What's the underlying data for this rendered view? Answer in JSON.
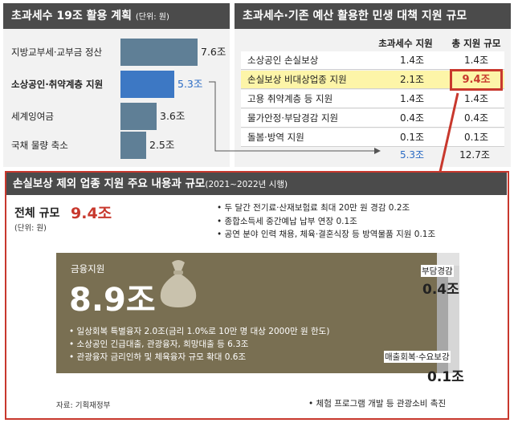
{
  "left": {
    "title": "초과세수 19조 활용 계획",
    "unit": "(단위: 원)",
    "items": [
      {
        "label": "지방교부세·교부금 정산",
        "value": "7.6조",
        "num": 7.6
      },
      {
        "label": "소상공인·취약계층 지원",
        "value": "5.3조",
        "num": 5.3
      },
      {
        "label": "세계잉여금",
        "value": "3.6조",
        "num": 3.6
      },
      {
        "label": "국채 물량 축소",
        "value": "2.5조",
        "num": 2.5
      }
    ]
  },
  "right": {
    "title": "초과세수·기존 예산 활용한 민생 대책 지원 규모",
    "headers": [
      "초과세수 지원",
      "총 지원 규모"
    ],
    "rows": [
      {
        "name": "소상공인 손실보상",
        "excess": "1.4조",
        "total": "1.4조"
      },
      {
        "name": "손실보상 비대상업종 지원",
        "excess": "2.1조",
        "total": "9.4조"
      },
      {
        "name": "고용 취약계층 등 지원",
        "excess": "1.4조",
        "total": "1.4조"
      },
      {
        "name": "물가안정·부담경감 지원",
        "excess": "0.4조",
        "total": "0.4조"
      },
      {
        "name": "돌봄·방역 지원",
        "excess": "0.1조",
        "total": "0.1조"
      }
    ],
    "sum_excess": "5.3조",
    "sum_total": "12.7조"
  },
  "bottom": {
    "title": "손실보상 제외 업종 지원 주요 내용과 규모",
    "period": "(2021~2022년 시행)",
    "total_label": "전체 규모",
    "total_value": "9.4조",
    "unit": "(단위: 원)",
    "notes": [
      "• 두 달간 전기료·산재보험료 최대 20만 원 경감 0.2조",
      "• 종합소득세 중간예납 납부 연장 0.1조",
      "• 공연 분야 인력 채용, 체육·결혼식장 등 방역물품 지원 0.1조"
    ],
    "finance": {
      "label": "금융지원",
      "value": "8.9조",
      "bullets": [
        "• 일상회복 특별융자 2.0조(금리 1.0%로 10만 명 대상 2000만 원 한도)",
        "• 소상공인 긴급대출, 관광융자, 희망대출 등 6.3조",
        "• 관광융자 금리인하 및 체육융자 규모 확대 0.6조"
      ]
    },
    "burden": {
      "label": "부담경감",
      "value": "0.4조"
    },
    "demand": {
      "label": "매출회복·수요보강",
      "value": "0.1조"
    },
    "source": "자료: 기획재정부",
    "exp_note": "• 체험 프로그램 개발 등 관광소비 촉진"
  }
}
